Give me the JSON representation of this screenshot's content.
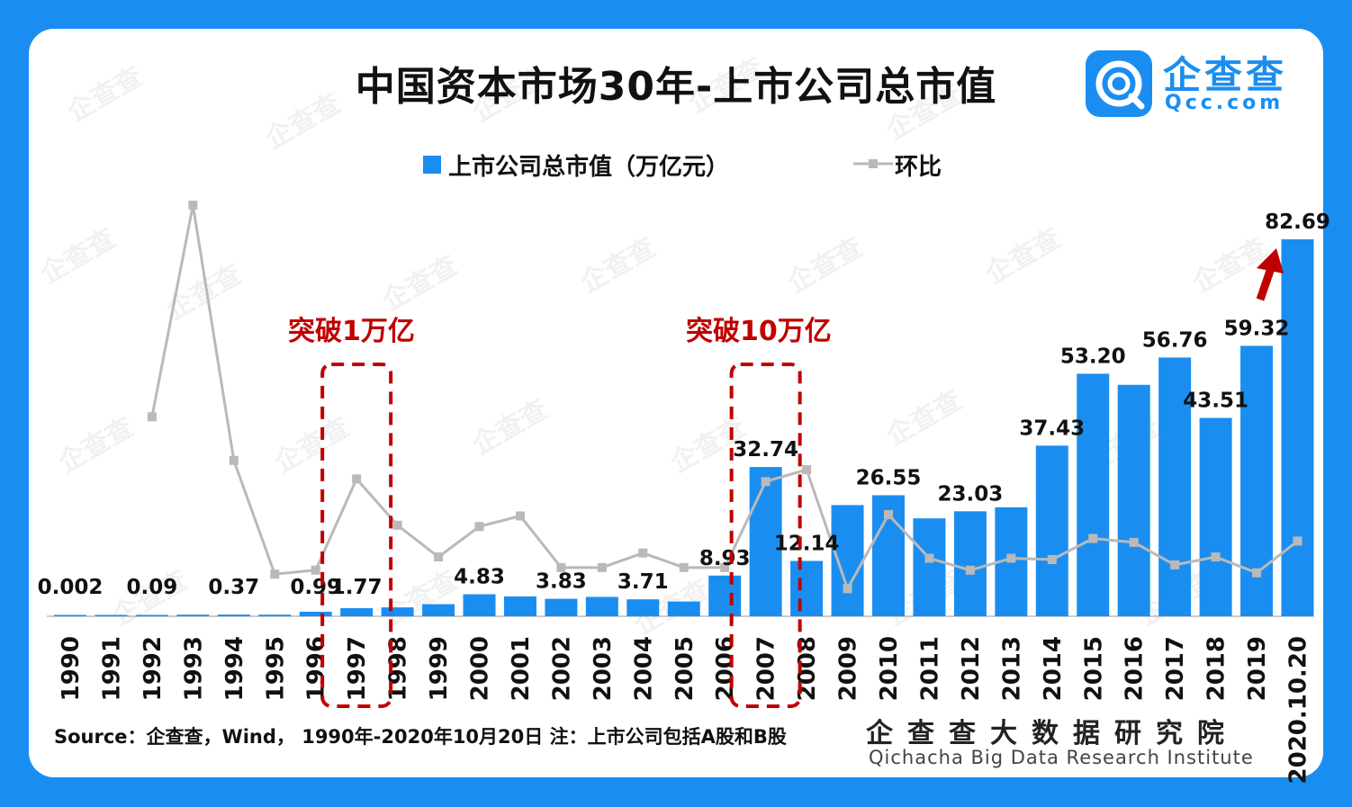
{
  "title": "中国资本市场30年-上市公司总市值",
  "logo": {
    "name": "企查查",
    "domain": "Qcc.com"
  },
  "watermark": "企查查",
  "legend": {
    "bar_label": "上市公司总市值（万亿元）",
    "line_label": "环比"
  },
  "annotations": {
    "a1": "突破1万亿",
    "a2": "突破10万亿"
  },
  "source": "Source：企查查，Wind，  1990年-2020年10月20日     注：上市公司包括A股和B股",
  "institute": {
    "cn": "企查查大数据研究院",
    "en": "Qichacha Big Data Research Institute"
  },
  "colors": {
    "bar": "#1a8ef0",
    "line": "#b9b9b9",
    "annotation": "#c00000",
    "background": "#1a8ef0"
  },
  "chart_data": {
    "type": "bar",
    "categories": [
      "1990",
      "1991",
      "1992",
      "1993",
      "1994",
      "1995",
      "1996",
      "1997",
      "1998",
      "1999",
      "2000",
      "2001",
      "2002",
      "2003",
      "2004",
      "2005",
      "2006",
      "2007",
      "2008",
      "2009",
      "2010",
      "2011",
      "2012",
      "2013",
      "2014",
      "2015",
      "2016",
      "2017",
      "2018",
      "2019",
      "2020.10.20"
    ],
    "series": [
      {
        "name": "上市公司总市值（万亿元）",
        "type": "bar",
        "values": [
          0.002,
          0.01,
          0.09,
          0.35,
          0.37,
          0.35,
          0.99,
          1.77,
          1.95,
          2.65,
          4.83,
          4.35,
          3.83,
          4.25,
          3.71,
          3.24,
          8.93,
          32.74,
          12.14,
          24.39,
          26.55,
          21.48,
          23.03,
          23.91,
          37.43,
          53.2,
          50.77,
          56.76,
          43.51,
          59.32,
          82.69
        ]
      },
      {
        "name": "环比",
        "type": "line",
        "values": [
          null,
          null,
          1.25,
          2.85,
          0.92,
          0.06,
          0.09,
          0.78,
          0.43,
          0.19,
          0.42,
          0.5,
          0.11,
          0.11,
          0.22,
          0.11,
          0.11,
          0.76,
          0.85,
          -0.05,
          0.51,
          0.18,
          0.09,
          0.18,
          0.17,
          0.33,
          0.3,
          0.13,
          0.19,
          0.07,
          0.31
        ]
      }
    ],
    "labels": {
      "1990": "0.002",
      "1992": "0.09",
      "1994": "0.37",
      "1996": "0.99",
      "1997": "1.77",
      "2000": "4.83",
      "2002": "3.83",
      "2004": "3.71",
      "2006": "8.93",
      "2007": "32.74",
      "2008": "12.14",
      "2010": "26.55",
      "2012": "23.03",
      "2014": "37.43",
      "2015": "53.20",
      "2017": "56.76",
      "2018": "43.51",
      "2019": "59.32",
      "2020.10.20": "82.69"
    },
    "highlight_categories": [
      "1997",
      "2007"
    ],
    "ylim_bar": [
      0,
      82.69
    ],
    "legend_position": "top-center",
    "grid": false
  }
}
